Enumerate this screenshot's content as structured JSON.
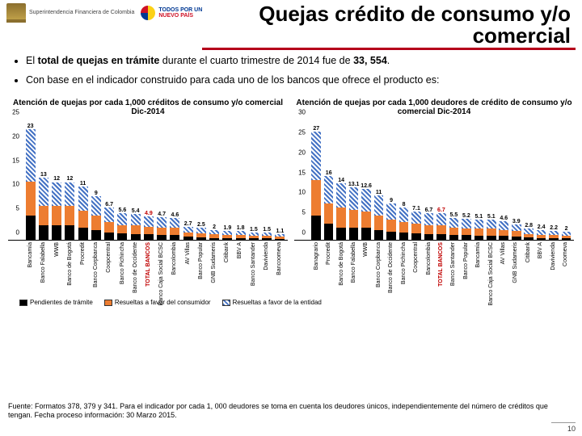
{
  "header": {
    "sfc_text": "Superintendencia\nFinanciera\nde Colombia",
    "nuevo_todos": "TODOS POR UN",
    "nuevo_pais": "NUEVO PAÍS",
    "title": "Quejas crédito de consumo y/o comercial"
  },
  "bullets": [
    "El <b>total de quejas en trámite</b> durante el cuarto trimestre de 2014 fue de <b>33, 554</b>.",
    "Con base en el indicador construido para cada uno de los bancos que ofrece el producto es:"
  ],
  "legend": {
    "items": [
      {
        "label": "Pendientes de trámite",
        "color": "#000000",
        "pattern": "solid"
      },
      {
        "label": "Resueltas a favor del consumidor",
        "color": "#ed7d31",
        "pattern": "solid"
      },
      {
        "label": "Resueltas a favor de la entidad",
        "color": "#4472c4",
        "pattern": "hatched"
      }
    ]
  },
  "chart_left": {
    "title": "Atención de quejas por cada 1,000 créditos de consumo y/o comercial\nDic-2014",
    "ylim": [
      0,
      25
    ],
    "ytick_step": 5,
    "colors": {
      "pend": "#000000",
      "favor_cons": "#ed7d31",
      "favor_ent": "#4472c4"
    },
    "highlight_index": 9,
    "data": [
      {
        "cat": "Bancamía",
        "total": 23,
        "pend": 5,
        "cons": 7,
        "ent": 11
      },
      {
        "cat": "Banco Falabella",
        "total": 13,
        "pend": 3,
        "cons": 4,
        "ent": 6
      },
      {
        "cat": "WWB",
        "total": 12,
        "pend": 3,
        "cons": 4,
        "ent": 5
      },
      {
        "cat": "Banco de Bogotá",
        "total": 12,
        "pend": 3,
        "cons": 4,
        "ent": 5
      },
      {
        "cat": "Procredit",
        "total": 11,
        "pend": 2.5,
        "cons": 3.5,
        "ent": 5
      },
      {
        "cat": "Banco Corpbanca",
        "total": 9,
        "pend": 2,
        "cons": 3,
        "ent": 4
      },
      {
        "cat": "Coopcentral",
        "total": 6.7,
        "pend": 1.5,
        "cons": 2.2,
        "ent": 3
      },
      {
        "cat": "Banco Pichincha",
        "total": 5.6,
        "pend": 1.3,
        "cons": 1.8,
        "ent": 2.5
      },
      {
        "cat": "Banco de Occidente",
        "total": 5.4,
        "pend": 1.2,
        "cons": 1.8,
        "ent": 2.4
      },
      {
        "cat": "TOTAL BANCOS",
        "total": 4.9,
        "pend": 1.1,
        "cons": 1.6,
        "ent": 2.2
      },
      {
        "cat": "Banco Caja Social BCSC",
        "total": 4.7,
        "pend": 1,
        "cons": 1.6,
        "ent": 2.1
      },
      {
        "cat": "Bancolombia",
        "total": 4.6,
        "pend": 1,
        "cons": 1.5,
        "ent": 2.1
      },
      {
        "cat": "AV Villas",
        "total": 2.7,
        "pend": 0.6,
        "cons": 0.9,
        "ent": 1.2
      },
      {
        "cat": "Banco Popular",
        "total": 2.5,
        "pend": 0.5,
        "cons": 0.9,
        "ent": 1.1
      },
      {
        "cat": "GNB Sudameris",
        "total": 2,
        "pend": 0.4,
        "cons": 0.7,
        "ent": 0.9
      },
      {
        "cat": "Citibank",
        "total": 1.9,
        "pend": 0.4,
        "cons": 0.6,
        "ent": 0.9
      },
      {
        "cat": "BBV A",
        "total": 1.8,
        "pend": 0.4,
        "cons": 0.6,
        "ent": 0.8
      },
      {
        "cat": "Banco Santander",
        "total": 1.5,
        "pend": 0.3,
        "cons": 0.5,
        "ent": 0.7
      },
      {
        "cat": "Davivienda",
        "total": 1.5,
        "pend": 0.3,
        "cons": 0.5,
        "ent": 0.7
      },
      {
        "cat": "Bancoomeva",
        "total": 1.1,
        "pend": 0.2,
        "cons": 0.4,
        "ent": 0.5
      }
    ]
  },
  "chart_right": {
    "title": "Atención de quejas por cada 1,000 deudores de crédito de consumo y/o comercial\nDic-2014",
    "ylim": [
      0,
      30
    ],
    "ytick_step": 5,
    "colors": {
      "pend": "#000000",
      "favor_cons": "#ed7d31",
      "favor_ent": "#4472c4"
    },
    "highlight_index": 10,
    "data": [
      {
        "cat": "Banagrario",
        "total": 27,
        "pend": 6,
        "cons": 9,
        "ent": 12
      },
      {
        "cat": "Procredit",
        "total": 16,
        "pend": 4,
        "cons": 5,
        "ent": 7
      },
      {
        "cat": "Banco de Bogotá",
        "total": 14,
        "pend": 3,
        "cons": 5,
        "ent": 6
      },
      {
        "cat": "Banco Falabella",
        "total": 13.1,
        "pend": 3,
        "cons": 4.5,
        "ent": 5.6
      },
      {
        "cat": "WWB",
        "total": 12.6,
        "pend": 3,
        "cons": 4,
        "ent": 5.6
      },
      {
        "cat": "Banco Corpbanca",
        "total": 11,
        "pend": 2.5,
        "cons": 3.5,
        "ent": 5
      },
      {
        "cat": "Banco de Occidente",
        "total": 9,
        "pend": 2,
        "cons": 3,
        "ent": 4
      },
      {
        "cat": "Banco Pichincha",
        "total": 8,
        "pend": 1.8,
        "cons": 2.7,
        "ent": 3.5
      },
      {
        "cat": "Coopcentral",
        "total": 7.1,
        "pend": 1.6,
        "cons": 2.4,
        "ent": 3.1
      },
      {
        "cat": "Bancolombia",
        "total": 6.7,
        "pend": 1.5,
        "cons": 2.2,
        "ent": 3
      },
      {
        "cat": "TOTAL BANCOS",
        "total": 6.7,
        "pend": 1.5,
        "cons": 2.2,
        "ent": 3
      },
      {
        "cat": "Banco Santander",
        "total": 5.5,
        "pend": 1.2,
        "cons": 1.8,
        "ent": 2.5
      },
      {
        "cat": "Banco Popular",
        "total": 5.2,
        "pend": 1.2,
        "cons": 1.7,
        "ent": 2.3
      },
      {
        "cat": "Bancamía",
        "total": 5.1,
        "pend": 1.1,
        "cons": 1.7,
        "ent": 2.3
      },
      {
        "cat": "Banco Caja Social BCSC",
        "total": 5.1,
        "pend": 1.1,
        "cons": 1.7,
        "ent": 2.3
      },
      {
        "cat": "AV Villas",
        "total": 4.6,
        "pend": 1,
        "cons": 1.5,
        "ent": 2.1
      },
      {
        "cat": "GNB Sudameris",
        "total": 3.9,
        "pend": 0.9,
        "cons": 1.3,
        "ent": 1.7
      },
      {
        "cat": "Citibank",
        "total": 2.8,
        "pend": 0.6,
        "cons": 0.9,
        "ent": 1.3
      },
      {
        "cat": "BBV A",
        "total": 2.4,
        "pend": 0.5,
        "cons": 0.8,
        "ent": 1.1
      },
      {
        "cat": "Davivienda",
        "total": 2.2,
        "pend": 0.5,
        "cons": 0.7,
        "ent": 1
      },
      {
        "cat": "Coomeva",
        "total": 2,
        "pend": 0.4,
        "cons": 0.7,
        "ent": 0.9
      }
    ]
  },
  "footer": {
    "text": "Fuente: Formatos 378, 379 y 341. Para el indicador por cada 1, 000 deudores se toma en cuenta los deudores únicos, independientemente del número de créditos que tengan. Fecha proceso información: 30 Marzo 2015.",
    "page": "10"
  }
}
